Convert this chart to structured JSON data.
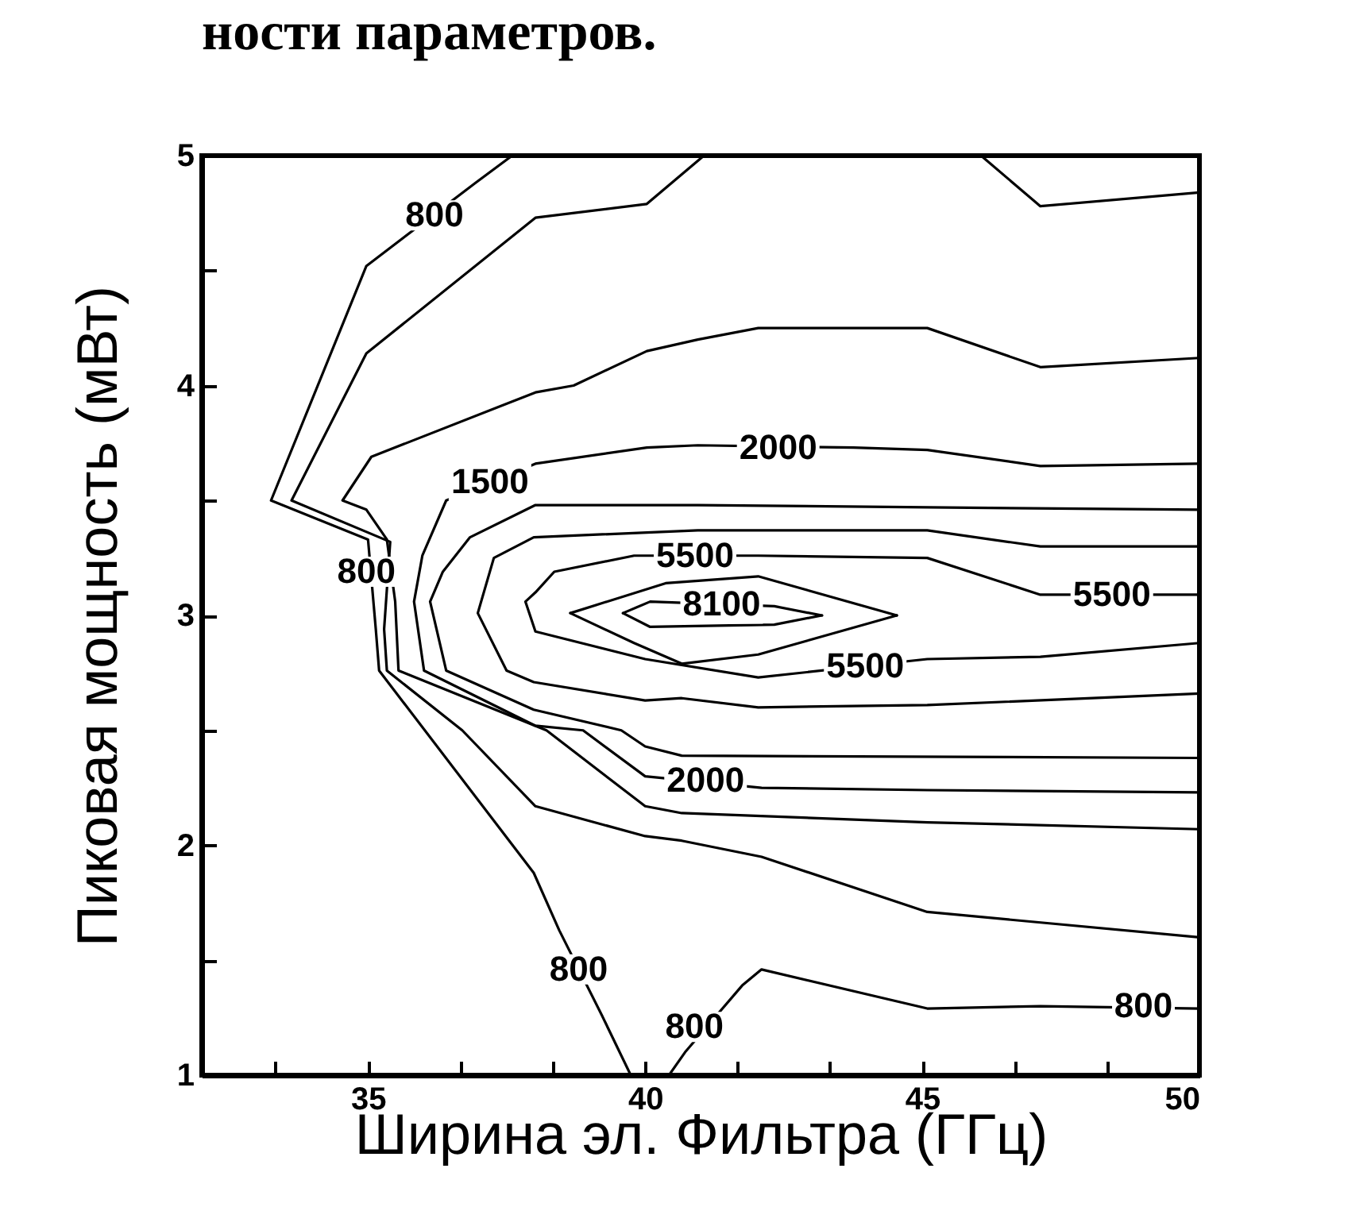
{
  "chart_data": {
    "type": "line",
    "title": "ности параметров.",
    "xlabel": "Ширина эл. Фильтра (ГГц)",
    "ylabel": "Пиковая мощность (мВт)",
    "xlim": [
      32,
      50
    ],
    "ylim": [
      1,
      5
    ],
    "xticks": [
      {
        "value": 33.33,
        "label": null
      },
      35,
      {
        "value": 36.67,
        "label": null
      },
      {
        "value": 38.33,
        "label": null
      },
      40,
      {
        "value": 41.67,
        "label": null
      },
      {
        "value": 43.33,
        "label": null
      },
      45,
      {
        "value": 46.67,
        "label": null
      },
      {
        "value": 48.33,
        "label": null
      },
      50
    ],
    "yticks": [
      1,
      {
        "value": 1.5,
        "label": null
      },
      2,
      {
        "value": 2.5,
        "label": null
      },
      3,
      {
        "value": 3.5,
        "label": null
      },
      4,
      {
        "value": 4.5,
        "label": null
      },
      5
    ],
    "series": [
      {
        "color": "#000000",
        "x": [
          37.6,
          36.93,
          34.97,
          33.25,
          35.0,
          35.14,
          35.2,
          37.99,
          38.45,
          39.22,
          39.74
        ],
        "values": [
          5,
          4.88,
          4.52,
          3.5,
          3.33,
          2.94,
          2.76,
          1.88,
          1.63,
          1.26,
          1.0
        ]
      },
      {
        "color": "#000000",
        "x": [
          41.06,
          40.03,
          38.02,
          34.97,
          33.62,
          35.4,
          35.29,
          35.34,
          36.7,
          38.02,
          40.0,
          40.66,
          42.1,
          45.09,
          50
        ],
        "values": [
          5,
          4.79,
          4.73,
          4.14,
          3.5,
          3.32,
          2.94,
          2.76,
          2.5,
          2.17,
          2.04,
          2.02,
          1.95,
          1.71,
          1.6
        ]
      },
      {
        "color": "#000000",
        "x": [
          46.06,
          47.13,
          50
        ],
        "values": [
          5,
          4.78,
          4.84
        ]
      },
      {
        "color": "#000000",
        "x": [
          40.43,
          40.72,
          41.75,
          42.1,
          45.09,
          47.13,
          50
        ],
        "values": [
          1,
          1.1,
          1.39,
          1.46,
          1.29,
          1.3,
          1.29
        ]
      },
      {
        "color": "#000000",
        "x": [
          50,
          47.13,
          45.09,
          42.04,
          40.95,
          40.03,
          38.71,
          38.02,
          35.06,
          34.54,
          34.97,
          35.34,
          35.49,
          35.55,
          38.22,
          40.0,
          40.66,
          45.09,
          50
        ],
        "values": [
          4.12,
          4.08,
          4.25,
          4.25,
          4.2,
          4.15,
          4.0,
          3.97,
          3.69,
          3.5,
          3.46,
          3.33,
          3.06,
          2.76,
          2.5,
          2.17,
          2.14,
          2.1,
          2.07
        ]
      },
      {
        "color": "#000000",
        "x": [
          50,
          47.13,
          45.09,
          43.76,
          40.95,
          40.03,
          38.02,
          36.41,
          35.98,
          35.83,
          36.01,
          38.02,
          38.88,
          40.0,
          42.1,
          45.09,
          50
        ],
        "values": [
          3.66,
          3.65,
          3.72,
          3.73,
          3.74,
          3.73,
          3.66,
          3.5,
          3.26,
          3.06,
          2.76,
          2.52,
          2.5,
          2.3,
          2.25,
          2.24,
          2.23
        ]
      },
      {
        "color": "#000000",
        "x": [
          50,
          45.09,
          40.95,
          38.02,
          36.84,
          36.35,
          36.12,
          36.41,
          37.99,
          39.57,
          40.0,
          40.66,
          50
        ],
        "values": [
          3.46,
          3.47,
          3.48,
          3.48,
          3.34,
          3.19,
          3.06,
          2.76,
          2.59,
          2.5,
          2.43,
          2.39,
          2.38
        ]
      },
      {
        "color": "#000000",
        "x": [
          50,
          47.13,
          45.09,
          40.95,
          37.99,
          37.27,
          36.98,
          37.5,
          37.99,
          40.0,
          40.66,
          42.04,
          45.09,
          50
        ],
        "values": [
          3.3,
          3.3,
          3.37,
          3.37,
          3.34,
          3.25,
          3.01,
          2.76,
          2.71,
          2.63,
          2.64,
          2.6,
          2.61,
          2.66
        ]
      },
      {
        "color": "#000000",
        "x": [
          50,
          47.13,
          45.09,
          42.04,
          39.8,
          38.36,
          38.02,
          37.84,
          38.02,
          40.0,
          42.04,
          45.09,
          47.13,
          50
        ],
        "values": [
          3.09,
          3.09,
          3.25,
          3.26,
          3.26,
          3.19,
          3.1,
          3.06,
          2.93,
          2.81,
          2.73,
          2.81,
          2.82,
          2.88
        ]
      },
      {
        "color": "#000000",
        "x": [
          38.65,
          40.37,
          42.04,
          44.54
        ],
        "values": [
          3.01,
          3.14,
          3.17,
          3.0
        ]
      },
      {
        "color": "#000000",
        "x": [
          38.65,
          39.8,
          40.66,
          42.04,
          44.54
        ],
        "values": [
          3.01,
          2.88,
          2.79,
          2.83,
          3.0
        ]
      },
      {
        "color": "#000000",
        "x": [
          39.6,
          40.09,
          42.33,
          43.19
        ],
        "values": [
          3.01,
          3.06,
          3.04,
          3.0
        ]
      },
      {
        "color": "#000000",
        "x": [
          39.6,
          40.09,
          42.33,
          43.19
        ],
        "values": [
          3.01,
          2.95,
          2.96,
          3.0
        ]
      }
    ],
    "annotations": [
      {
        "text": "800",
        "x": 36.2,
        "y": 4.74
      },
      {
        "text": "1500",
        "x": 37.2,
        "y": 3.58
      },
      {
        "text": "800",
        "x": 34.97,
        "y": 3.19
      },
      {
        "text": "5500",
        "x": 40.9,
        "y": 3.26
      },
      {
        "text": "8100",
        "x": 41.38,
        "y": 3.05
      },
      {
        "text": "2000",
        "x": 42.4,
        "y": 3.73
      },
      {
        "text": "5500",
        "x": 48.42,
        "y": 3.09
      },
      {
        "text": "5500",
        "x": 43.97,
        "y": 2.78
      },
      {
        "text": "2000",
        "x": 41.09,
        "y": 2.28
      },
      {
        "text": "800",
        "x": 38.8,
        "y": 1.46
      },
      {
        "text": "800",
        "x": 40.89,
        "y": 1.21
      },
      {
        "text": "800",
        "x": 48.99,
        "y": 1.3
      }
    ]
  }
}
